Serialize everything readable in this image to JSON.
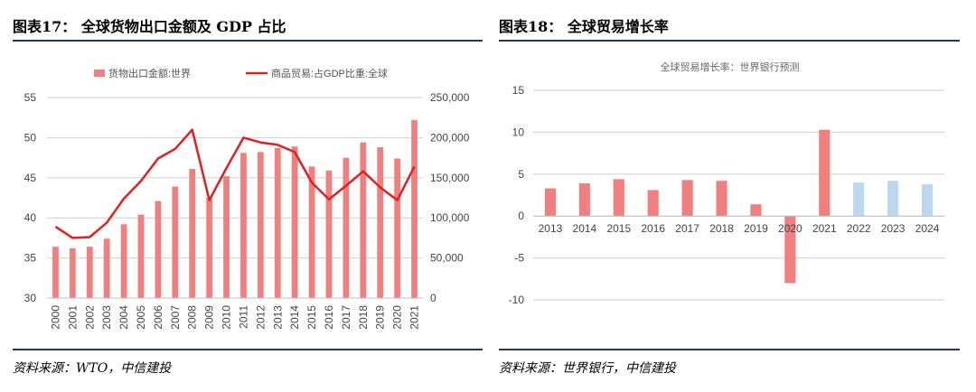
{
  "left": {
    "figure_title": "图表17： 全球货物出口金额及 GDP 占比",
    "source": "资料来源：WTO，中信建投"
  },
  "right": {
    "figure_title": "图表18： 全球贸易增长率",
    "source": "资料来源：世界银行，中信建投"
  },
  "colors": {
    "bar": "#f08080",
    "line": "#e02020",
    "forecast_bar": "#bdd7ee",
    "rule": "#1f3864"
  },
  "chart_data": [
    {
      "type": "bar+line",
      "categories": [
        "2000",
        "2001",
        "2002",
        "2003",
        "2004",
        "2005",
        "2006",
        "2007",
        "2008",
        "2009",
        "2010",
        "2011",
        "2012",
        "2013",
        "2014",
        "2015",
        "2016",
        "2017",
        "2018",
        "2019",
        "2020",
        "2021"
      ],
      "series": [
        {
          "name": "货物出口金额:世界",
          "type": "bar",
          "axis": "right",
          "values": [
            64000,
            62000,
            64000,
            74000,
            92000,
            104000,
            121000,
            139000,
            161000,
            125000,
            152000,
            181000,
            182000,
            187000,
            189000,
            164000,
            159000,
            175000,
            194000,
            188000,
            174000,
            222000
          ]
        },
        {
          "name": "商品贸易:占GDP比重:全球",
          "type": "line",
          "axis": "left",
          "values": [
            38.9,
            37.5,
            37.6,
            39.4,
            42.4,
            44.6,
            47.4,
            48.6,
            51.0,
            42.2,
            46.2,
            50.0,
            49.4,
            49.1,
            48.2,
            44.4,
            42.3,
            44.0,
            45.8,
            43.8,
            42.2,
            46.4
          ]
        }
      ],
      "y_left": {
        "range": [
          30,
          55
        ],
        "ticks": [
          "55",
          "50",
          "45",
          "40",
          "35",
          "30"
        ]
      },
      "y_right": {
        "range": [
          0,
          250000
        ],
        "ticks": [
          "250,000",
          "200,000",
          "150,000",
          "100,000",
          "50,000",
          "0"
        ]
      },
      "grid": true,
      "legend_placement": "top"
    },
    {
      "type": "bar",
      "title": "全球贸易增长率：世界银行预测",
      "categories": [
        "2013",
        "2014",
        "2015",
        "2016",
        "2017",
        "2018",
        "2019",
        "2020",
        "2021",
        "2022",
        "2023",
        "2024"
      ],
      "values": [
        3.3,
        3.9,
        4.4,
        3.1,
        4.3,
        4.2,
        1.4,
        -8.0,
        10.3,
        4.0,
        4.2,
        3.8
      ],
      "forecast": [
        false,
        false,
        false,
        false,
        false,
        false,
        false,
        false,
        false,
        true,
        true,
        true
      ],
      "y_range": [
        -10,
        15
      ],
      "y_ticks": [
        "15",
        "10",
        "5",
        "0",
        "-5",
        "-10"
      ],
      "grid": true
    }
  ]
}
